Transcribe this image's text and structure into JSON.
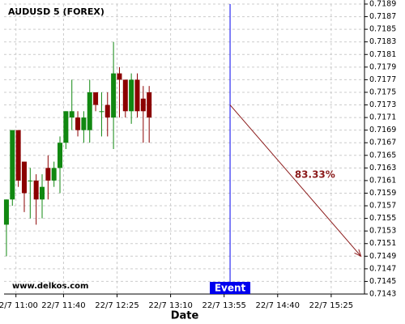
{
  "chart_data": {
    "type": "candlestick",
    "title": "AUDUSD 5 (FOREX)",
    "watermark": "www.delkos.com",
    "x_label": "Date",
    "series": [
      {
        "up_color": "#118811",
        "down_color": "#8b0000",
        "x": [
          652,
          657,
          662,
          667,
          672,
          677,
          682,
          687,
          692,
          697,
          702,
          707,
          712,
          717,
          722,
          727,
          732,
          737,
          742,
          747,
          752,
          757,
          762,
          767,
          772
        ],
        "open": [
          0.7154,
          0.7158,
          0.7169,
          0.7164,
          0.7161,
          0.7161,
          0.7158,
          0.7163,
          0.7161,
          0.7163,
          0.7167,
          0.7171,
          0.7171,
          0.7169,
          0.7169,
          0.7175,
          0.7172,
          0.7173,
          0.7171,
          0.7178,
          0.7177,
          0.7172,
          0.7177,
          0.7174,
          0.7175
        ],
        "high": [
          0.7158,
          0.7169,
          0.7169,
          0.7164,
          0.7163,
          0.7162,
          0.7162,
          0.7165,
          0.7164,
          0.7168,
          0.7172,
          0.7177,
          0.7172,
          0.7172,
          0.7177,
          0.7175,
          0.7175,
          0.7175,
          0.7183,
          0.7179,
          0.7177,
          0.7178,
          0.7178,
          0.7176,
          0.7176
        ],
        "low": [
          0.7149,
          0.7157,
          0.716,
          0.7156,
          0.7155,
          0.7154,
          0.7155,
          0.7158,
          0.716,
          0.7159,
          0.7166,
          0.7169,
          0.7168,
          0.7167,
          0.7167,
          0.7172,
          0.7168,
          0.7168,
          0.7166,
          0.7171,
          0.7171,
          0.717,
          0.7171,
          0.7167,
          0.7167
        ],
        "close": [
          0.7158,
          0.7169,
          0.7161,
          0.7159,
          0.7161,
          0.7158,
          0.716,
          0.7161,
          0.7163,
          0.7167,
          0.7172,
          0.7172,
          0.7169,
          0.7171,
          0.7175,
          0.7173,
          0.7172,
          0.7171,
          0.7178,
          0.7177,
          0.7172,
          0.7177,
          0.7172,
          0.7172,
          0.7171
        ]
      }
    ],
    "event": {
      "x": 840,
      "label": "Event",
      "color": "#0000ee"
    },
    "projection": {
      "x": [
        840,
        950
      ],
      "y": [
        0.7173,
        0.7149
      ],
      "label": "83.33%",
      "color": "#8b1a1a"
    },
    "xlim": [
      650,
      953
    ],
    "xticks": [
      {
        "value": 660,
        "label": "22/7 11:00"
      },
      {
        "value": 700,
        "label": "22/7 11:40"
      },
      {
        "value": 745,
        "label": "22/7 12:25"
      },
      {
        "value": 790,
        "label": "22/7 13:10"
      },
      {
        "value": 835,
        "label": "22/7 13:55"
      },
      {
        "value": 880,
        "label": "22/7 14:40"
      },
      {
        "value": 925,
        "label": "22/7 15:25"
      }
    ],
    "ylim": [
      0.7143,
      0.7189
    ],
    "yticks": [
      0.7143,
      0.7145,
      0.7147,
      0.7149,
      0.7151,
      0.7153,
      0.7155,
      0.7157,
      0.7159,
      0.7161,
      0.7163,
      0.7165,
      0.7167,
      0.7169,
      0.7171,
      0.7173,
      0.7175,
      0.7177,
      0.7179,
      0.7181,
      0.7183,
      0.7185,
      0.7187,
      0.7189
    ],
    "grid": true
  }
}
